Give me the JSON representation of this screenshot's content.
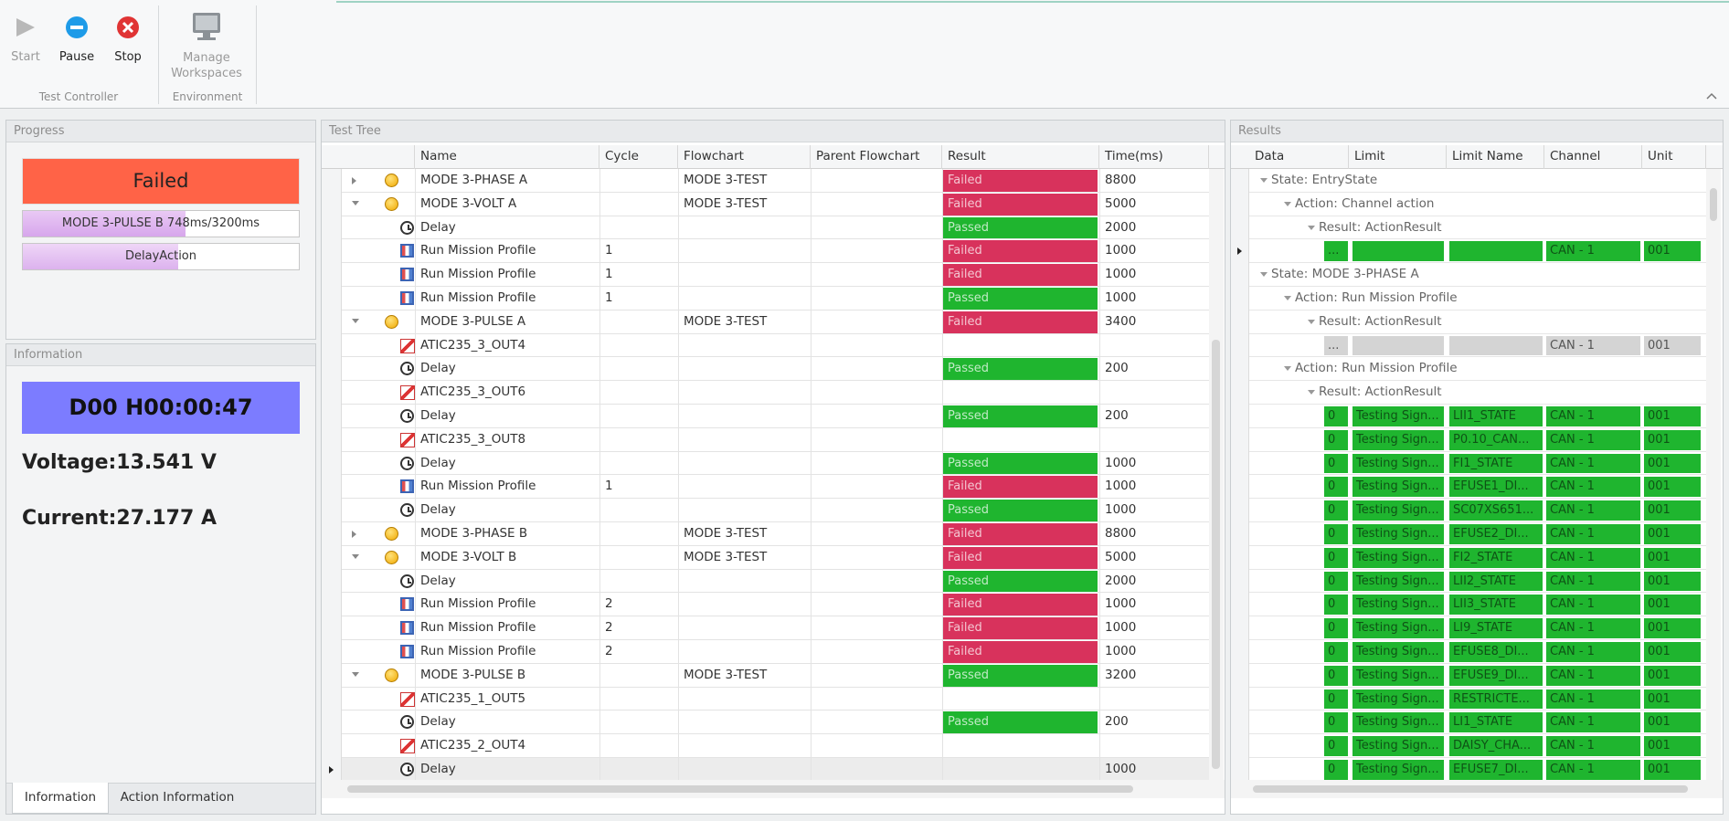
{
  "toolbar": {
    "buttons": [
      "Start",
      "Pause",
      "Stop",
      "Manage Workspaces"
    ],
    "groups": [
      "Test Controller",
      "Environment"
    ]
  },
  "progress": {
    "title": "Progress",
    "status": "Failed",
    "step": "MODE 3-PULSE B 748ms/3200ms",
    "action": "DelayAction"
  },
  "information": {
    "title": "Information",
    "clock": "D00 H00:00:47",
    "voltage": "Voltage:13.541 V",
    "current": "Current:27.177 A",
    "tabs": [
      "Information",
      "Action Information"
    ]
  },
  "test_tree": {
    "title": "Test Tree",
    "columns": [
      "Name",
      "Cycle",
      "Flowchart",
      "Parent Flowchart",
      "Result",
      "Time(ms)"
    ],
    "result_colors": {
      "Failed": "#d8325c",
      "Passed": "#1fb52f"
    },
    "rows": [
      {
        "icon": "group",
        "expander": "collapsed",
        "name": "MODE 3-PHASE A",
        "flowchart": "MODE 3-TEST",
        "result": "Failed",
        "time": 8800
      },
      {
        "icon": "group",
        "expander": "expanded",
        "name": "MODE 3-VOLT A",
        "flowchart": "MODE 3-TEST",
        "result": "Failed",
        "time": 5000
      },
      {
        "icon": "delay",
        "name": "Delay",
        "result": "Passed",
        "time": 2000
      },
      {
        "icon": "profile",
        "name": "Run Mission Profile",
        "cycle": 1,
        "result": "Failed",
        "time": 1000
      },
      {
        "icon": "profile",
        "name": "Run Mission Profile",
        "cycle": 1,
        "result": "Failed",
        "time": 1000
      },
      {
        "icon": "profile",
        "name": "Run Mission Profile",
        "cycle": 1,
        "result": "Passed",
        "time": 1000
      },
      {
        "icon": "group",
        "expander": "expanded",
        "name": "MODE 3-PULSE A",
        "flowchart": "MODE 3-TEST",
        "result": "Failed",
        "time": 3400
      },
      {
        "icon": "signal",
        "name": "ATIC235_3_OUT4"
      },
      {
        "icon": "delay",
        "name": "Delay",
        "result": "Passed",
        "time": 200
      },
      {
        "icon": "signal",
        "name": "ATIC235_3_OUT6"
      },
      {
        "icon": "delay",
        "name": "Delay",
        "result": "Passed",
        "time": 200
      },
      {
        "icon": "signal",
        "name": "ATIC235_3_OUT8"
      },
      {
        "icon": "delay",
        "name": "Delay",
        "result": "Passed",
        "time": 1000
      },
      {
        "icon": "profile",
        "name": "Run Mission Profile",
        "cycle": 1,
        "result": "Failed",
        "time": 1000
      },
      {
        "icon": "delay",
        "name": "Delay",
        "result": "Passed",
        "time": 1000
      },
      {
        "icon": "group",
        "expander": "collapsed",
        "name": "MODE 3-PHASE B",
        "flowchart": "MODE 3-TEST",
        "result": "Failed",
        "time": 8800
      },
      {
        "icon": "group",
        "expander": "expanded",
        "name": "MODE 3-VOLT B",
        "flowchart": "MODE 3-TEST",
        "result": "Failed",
        "time": 5000
      },
      {
        "icon": "delay",
        "name": "Delay",
        "result": "Passed",
        "time": 2000
      },
      {
        "icon": "profile",
        "name": "Run Mission Profile",
        "cycle": 2,
        "result": "Failed",
        "time": 1000
      },
      {
        "icon": "profile",
        "name": "Run Mission Profile",
        "cycle": 2,
        "result": "Failed",
        "time": 1000
      },
      {
        "icon": "profile",
        "name": "Run Mission Profile",
        "cycle": 2,
        "result": "Failed",
        "time": 1000
      },
      {
        "icon": "group",
        "expander": "expanded",
        "name": "MODE 3-PULSE B",
        "flowchart": "MODE 3-TEST",
        "result": "Passed",
        "time": 3200
      },
      {
        "icon": "signal",
        "name": "ATIC235_1_OUT5"
      },
      {
        "icon": "delay",
        "name": "Delay",
        "result": "Passed",
        "time": 200
      },
      {
        "icon": "signal",
        "name": "ATIC235_2_OUT4"
      },
      {
        "icon": "delay",
        "name": "Delay",
        "time": 1000,
        "current": true
      }
    ]
  },
  "results": {
    "title": "Results",
    "columns": [
      "Data",
      "Limit",
      "Limit Name",
      "Channel",
      "Unit"
    ],
    "rows": [
      {
        "level": 0,
        "label": "State: EntryState"
      },
      {
        "level": 1,
        "label": "Action: Channel action"
      },
      {
        "level": 2,
        "label": "Result: ActionResult"
      },
      {
        "color": "#1fb52f",
        "current": true,
        "cells": {
          "data": "...",
          "channel": "CAN - 1",
          "unit": "001"
        }
      },
      {
        "level": 0,
        "label": "State: MODE 3-PHASE A"
      },
      {
        "level": 1,
        "label": "Action: Run Mission Profile"
      },
      {
        "level": 2,
        "label": "Result: ActionResult"
      },
      {
        "color": "#d4d4d4",
        "cells": {
          "data": "...",
          "channel": "CAN - 1",
          "unit": "001"
        }
      },
      {
        "level": 1,
        "label": "Action: Run Mission Profile"
      },
      {
        "level": 2,
        "label": "Result: ActionResult"
      },
      {
        "color": "#1fb52f",
        "cells": {
          "data": 0,
          "limit": "Testing Sign...",
          "limit_name": "LII1_STATE",
          "channel": "CAN - 1",
          "unit": "001"
        }
      },
      {
        "color": "#1fb52f",
        "cells": {
          "data": 0,
          "limit": "Testing Sign...",
          "limit_name": "P0.10_CAN...",
          "channel": "CAN - 1",
          "unit": "001"
        }
      },
      {
        "color": "#1fb52f",
        "cells": {
          "data": 0,
          "limit": "Testing Sign...",
          "limit_name": "FI1_STATE",
          "channel": "CAN - 1",
          "unit": "001"
        }
      },
      {
        "color": "#1fb52f",
        "cells": {
          "data": 0,
          "limit": "Testing Sign...",
          "limit_name": "EFUSE1_DI...",
          "channel": "CAN - 1",
          "unit": "001"
        }
      },
      {
        "color": "#1fb52f",
        "cells": {
          "data": 0,
          "limit": "Testing Sign...",
          "limit_name": "SC07XS651...",
          "channel": "CAN - 1",
          "unit": "001"
        }
      },
      {
        "color": "#1fb52f",
        "cells": {
          "data": 0,
          "limit": "Testing Sign...",
          "limit_name": "EFUSE2_DI...",
          "channel": "CAN - 1",
          "unit": "001"
        }
      },
      {
        "color": "#1fb52f",
        "cells": {
          "data": 0,
          "limit": "Testing Sign...",
          "limit_name": "FI2_STATE",
          "channel": "CAN - 1",
          "unit": "001"
        }
      },
      {
        "color": "#1fb52f",
        "cells": {
          "data": 0,
          "limit": "Testing Sign...",
          "limit_name": "LII2_STATE",
          "channel": "CAN - 1",
          "unit": "001"
        }
      },
      {
        "color": "#1fb52f",
        "cells": {
          "data": 0,
          "limit": "Testing Sign...",
          "limit_name": "LII3_STATE",
          "channel": "CAN - 1",
          "unit": "001"
        }
      },
      {
        "color": "#1fb52f",
        "cells": {
          "data": 0,
          "limit": "Testing Sign...",
          "limit_name": "LI9_STATE",
          "channel": "CAN - 1",
          "unit": "001"
        }
      },
      {
        "color": "#1fb52f",
        "cells": {
          "data": 0,
          "limit": "Testing Sign...",
          "limit_name": "EFUSE8_DI...",
          "channel": "CAN - 1",
          "unit": "001"
        }
      },
      {
        "color": "#1fb52f",
        "cells": {
          "data": 0,
          "limit": "Testing Sign...",
          "limit_name": "EFUSE9_DI...",
          "channel": "CAN - 1",
          "unit": "001"
        }
      },
      {
        "color": "#1fb52f",
        "cells": {
          "data": 0,
          "limit": "Testing Sign...",
          "limit_name": "RESTRICTE...",
          "channel": "CAN - 1",
          "unit": "001"
        }
      },
      {
        "color": "#1fb52f",
        "cells": {
          "data": 0,
          "limit": "Testing Sign...",
          "limit_name": "LI1_STATE",
          "channel": "CAN - 1",
          "unit": "001"
        }
      },
      {
        "color": "#1fb52f",
        "cells": {
          "data": 0,
          "limit": "Testing Sign...",
          "limit_name": "DAISY_CHA...",
          "channel": "CAN - 1",
          "unit": "001"
        }
      },
      {
        "color": "#1fb52f",
        "cells": {
          "data": 0,
          "limit": "Testing Sign...",
          "limit_name": "EFUSE7_DI...",
          "channel": "CAN - 1",
          "unit": "001"
        }
      }
    ]
  }
}
